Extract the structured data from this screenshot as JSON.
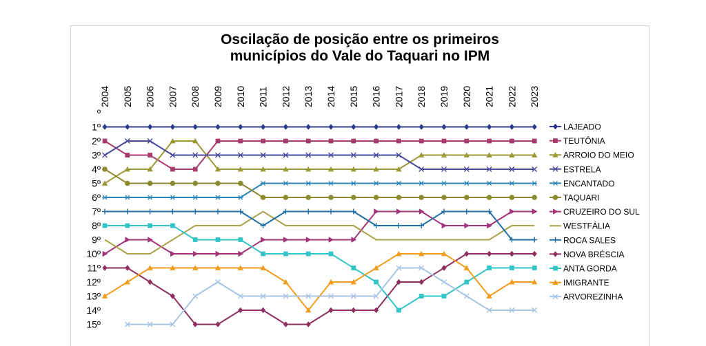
{
  "chart_data": {
    "type": "line",
    "title_lines": [
      "Oscilação de posição entre os primeiros",
      "municípios do Vale do Taquari no IPM"
    ],
    "years": [
      "2004",
      "2005",
      "2006",
      "2007",
      "2008",
      "2009",
      "2010",
      "2011",
      "2012",
      "2013",
      "2014",
      "2015",
      "2016",
      "2017",
      "2018",
      "2019",
      "2020",
      "2021",
      "2022",
      "2023"
    ],
    "y_ticks": [
      "º",
      "1º",
      "2º",
      "3º",
      "4º",
      "5º",
      "6º",
      "7º",
      "8º",
      "9º",
      "10º",
      "11º",
      "12º",
      "13º",
      "14º",
      "15º"
    ],
    "y_axis": {
      "inverted": true,
      "range": [
        0,
        15
      ]
    },
    "grid": false,
    "legend_position": "right",
    "series": [
      {
        "name": "LAJEADO",
        "color": "#2E3A8C",
        "marker": "diamond",
        "values": [
          1,
          1,
          1,
          1,
          1,
          1,
          1,
          1,
          1,
          1,
          1,
          1,
          1,
          1,
          1,
          1,
          1,
          1,
          1,
          1
        ]
      },
      {
        "name": "TEUTÔNIA",
        "color": "#A83C6E",
        "marker": "square",
        "values": [
          2,
          3,
          3,
          4,
          4,
          2,
          2,
          2,
          2,
          2,
          2,
          2,
          2,
          2,
          2,
          2,
          2,
          2,
          2,
          2
        ]
      },
      {
        "name": "ARROIO DO MEIO",
        "color": "#9C9A36",
        "marker": "triangle",
        "values": [
          5,
          4,
          4,
          2,
          2,
          4,
          4,
          4,
          4,
          4,
          4,
          4,
          4,
          4,
          3,
          3,
          3,
          3,
          3,
          3
        ]
      },
      {
        "name": "ESTRELA",
        "color": "#4B4A9A",
        "marker": "x",
        "values": [
          3,
          2,
          2,
          3,
          3,
          3,
          3,
          3,
          3,
          3,
          3,
          3,
          3,
          3,
          4,
          4,
          4,
          4,
          4,
          4
        ]
      },
      {
        "name": "ENCANTADO",
        "color": "#2A86B8",
        "marker": "star",
        "values": [
          6,
          6,
          6,
          6,
          6,
          6,
          6,
          5,
          5,
          5,
          5,
          5,
          5,
          5,
          5,
          5,
          5,
          5,
          5,
          5
        ]
      },
      {
        "name": "TAQUARI",
        "color": "#8C8A2E",
        "marker": "circle",
        "values": [
          4,
          5,
          5,
          5,
          5,
          5,
          5,
          6,
          6,
          6,
          6,
          6,
          6,
          6,
          6,
          6,
          6,
          6,
          6,
          6
        ]
      },
      {
        "name": "CRUZEIRO DO SUL",
        "color": "#A23478",
        "marker": "tri-right",
        "values": [
          10,
          9,
          9,
          10,
          10,
          10,
          10,
          9,
          9,
          9,
          9,
          9,
          7,
          7,
          7,
          8,
          8,
          8,
          7,
          7
        ]
      },
      {
        "name": "WESTFÁLIA",
        "color": "#A9A24A",
        "marker": "none",
        "values": [
          9,
          10,
          10,
          9,
          8,
          8,
          8,
          7,
          8,
          8,
          8,
          8,
          9,
          9,
          9,
          9,
          9,
          9,
          8,
          8
        ]
      },
      {
        "name": "ROCA SALES",
        "color": "#1F6FA6",
        "marker": "plus",
        "values": [
          7,
          7,
          7,
          7,
          7,
          7,
          7,
          8,
          7,
          7,
          7,
          7,
          8,
          8,
          8,
          7,
          7,
          7,
          9,
          9
        ]
      },
      {
        "name": "NOVA BRÉSCIA",
        "color": "#8E2F5F",
        "marker": "diamond",
        "values": [
          11,
          11,
          12,
          13,
          15,
          15,
          14,
          14,
          15,
          15,
          14,
          14,
          14,
          12,
          12,
          11,
          10,
          10,
          10,
          10
        ]
      },
      {
        "name": "ANTA GORDA",
        "color": "#33C4C8",
        "marker": "square",
        "values": [
          8,
          8,
          8,
          8,
          9,
          9,
          9,
          10,
          10,
          10,
          10,
          11,
          12,
          14,
          13,
          13,
          12,
          11,
          11,
          11
        ]
      },
      {
        "name": "IMIGRANTE",
        "color": "#F29C1F",
        "marker": "triangle",
        "values": [
          13,
          12,
          11,
          11,
          11,
          11,
          11,
          11,
          12,
          14,
          12,
          12,
          11,
          10,
          10,
          10,
          11,
          13,
          12,
          12
        ]
      },
      {
        "name": "ARVOREZINHA",
        "color": "#A8C4E4",
        "marker": "x",
        "values": [
          null,
          15,
          15,
          15,
          13,
          12,
          13,
          13,
          13,
          13,
          13,
          13,
          13,
          11,
          11,
          12,
          13,
          14,
          14,
          14
        ]
      }
    ]
  }
}
